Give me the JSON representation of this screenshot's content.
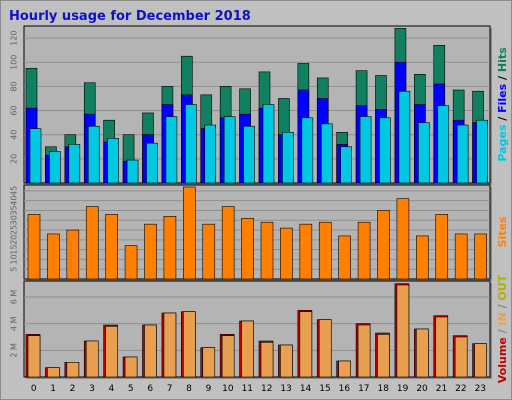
{
  "title": "Hourly usage for December 2018",
  "colors": {
    "pages": "#00c8e0",
    "files": "#0000ff",
    "hits": "#108060",
    "sites": "#ff8000",
    "visits": "#ffc000",
    "in": "#e8a050",
    "out": "#b0b000",
    "volume": "#c00000",
    "panel": "#b4b4b4",
    "grid": "#909090"
  },
  "chart_data": [
    {
      "type": "bar",
      "categories": [
        "0",
        "1",
        "2",
        "3",
        "4",
        "5",
        "6",
        "7",
        "8",
        "9",
        "10",
        "11",
        "12",
        "13",
        "14",
        "15",
        "16",
        "17",
        "18",
        "19",
        "20",
        "21",
        "22",
        "23"
      ],
      "yticks": [
        "20",
        "40",
        "60",
        "80",
        "100",
        "120"
      ],
      "ylim": [
        0,
        130
      ],
      "legend": [
        "Pages",
        "Files",
        "Hits"
      ],
      "series": [
        {
          "name": "Hits",
          "values": [
            95,
            30,
            40,
            83,
            52,
            40,
            58,
            80,
            105,
            73,
            80,
            78,
            92,
            70,
            99,
            87,
            42,
            93,
            89,
            128,
            90,
            114,
            77,
            76
          ]
        },
        {
          "name": "Files",
          "values": [
            62,
            23,
            30,
            57,
            34,
            18,
            40,
            65,
            73,
            45,
            54,
            57,
            62,
            40,
            77,
            70,
            32,
            64,
            61,
            100,
            65,
            82,
            52,
            50
          ]
        },
        {
          "name": "Pages",
          "values": [
            45,
            26,
            32,
            47,
            37,
            19,
            33,
            55,
            65,
            48,
            55,
            47,
            65,
            42,
            54,
            49,
            30,
            55,
            54,
            76,
            50,
            64,
            48,
            52
          ]
        }
      ]
    },
    {
      "type": "bar",
      "categories": [
        "0",
        "1",
        "2",
        "3",
        "4",
        "5",
        "6",
        "7",
        "8",
        "9",
        "10",
        "11",
        "12",
        "13",
        "14",
        "15",
        "16",
        "17",
        "18",
        "19",
        "20",
        "21",
        "22",
        "23"
      ],
      "yticks": [
        "5",
        "10",
        "15",
        "20",
        "25",
        "30",
        "35",
        "40",
        "45"
      ],
      "ylim": [
        0,
        48
      ],
      "legend": [
        "Sites"
      ],
      "series": [
        {
          "name": "Sites",
          "values": [
            33,
            23,
            25,
            37,
            33,
            17,
            28,
            32,
            47,
            28,
            37,
            31,
            29,
            26,
            28,
            29,
            22,
            29,
            35,
            41,
            22,
            33,
            23,
            23
          ]
        }
      ]
    },
    {
      "type": "bar",
      "categories": [
        "0",
        "1",
        "2",
        "3",
        "4",
        "5",
        "6",
        "7",
        "8",
        "9",
        "10",
        "11",
        "12",
        "13",
        "14",
        "15",
        "16",
        "17",
        "18",
        "19",
        "20",
        "21",
        "22",
        "23"
      ],
      "yticks": [
        "2 M",
        "4 M",
        "6 M"
      ],
      "ylim": [
        0,
        7.2
      ],
      "legend": [
        "Volume",
        "IN",
        "OUT"
      ],
      "series": [
        {
          "name": "Volume",
          "values": [
            3.2,
            0.7,
            1.1,
            2.7,
            3.9,
            1.5,
            3.9,
            4.8,
            4.9,
            2.2,
            3.2,
            4.2,
            2.7,
            2.4,
            5.0,
            4.3,
            1.2,
            4.0,
            3.3,
            7.0,
            3.6,
            4.6,
            3.1,
            2.5
          ]
        },
        {
          "name": "IN",
          "values": [
            3.1,
            0.7,
            1.1,
            2.7,
            3.8,
            1.5,
            3.9,
            4.8,
            4.9,
            2.2,
            3.1,
            4.2,
            2.6,
            2.4,
            4.9,
            4.3,
            1.2,
            3.9,
            3.2,
            6.9,
            3.6,
            4.5,
            3.0,
            2.5
          ]
        }
      ]
    }
  ]
}
